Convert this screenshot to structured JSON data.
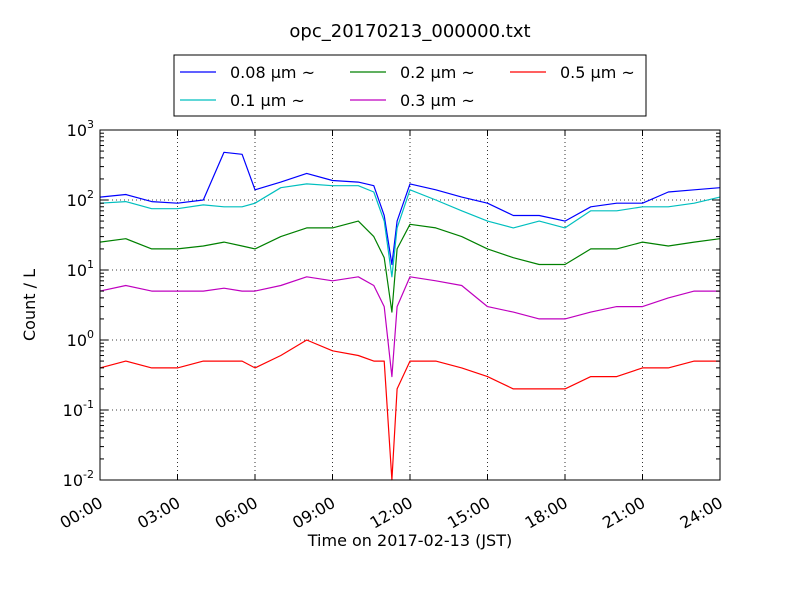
{
  "chart_data": {
    "type": "line",
    "title": "opc_20170213_000000.txt",
    "xlabel": "Time on 2017-02-13 (JST)",
    "ylabel": "Count / L",
    "y_scale": "log",
    "ylim": [
      0.01,
      1000
    ],
    "xlim_hours": [
      0,
      24
    ],
    "grid": "dotted",
    "legend_position": "top",
    "x_ticks": [
      {
        "hour": 0,
        "label": "00:00"
      },
      {
        "hour": 3,
        "label": "03:00"
      },
      {
        "hour": 6,
        "label": "06:00"
      },
      {
        "hour": 9,
        "label": "09:00"
      },
      {
        "hour": 12,
        "label": "12:00"
      },
      {
        "hour": 15,
        "label": "15:00"
      },
      {
        "hour": 18,
        "label": "18:00"
      },
      {
        "hour": 21,
        "label": "21:00"
      },
      {
        "hour": 24,
        "label": "24:00"
      }
    ],
    "y_ticks": [
      {
        "value": 0.01,
        "base": "10",
        "exp": "-2"
      },
      {
        "value": 0.1,
        "base": "10",
        "exp": "-1"
      },
      {
        "value": 1,
        "base": "10",
        "exp": "0"
      },
      {
        "value": 10,
        "base": "10",
        "exp": "1"
      },
      {
        "value": 100,
        "base": "10",
        "exp": "2"
      },
      {
        "value": 1000,
        "base": "10",
        "exp": "3"
      }
    ],
    "x": [
      0,
      1,
      2,
      3,
      4,
      4.8,
      5.5,
      6,
      7,
      8,
      9,
      10,
      10.6,
      11,
      11.3,
      11.5,
      12,
      13,
      14,
      15,
      16,
      17,
      18,
      19,
      20,
      21,
      22,
      23,
      24
    ],
    "series": [
      {
        "name": "0.08 μm ~",
        "color": "#0000ff",
        "values": [
          110,
          120,
          95,
          90,
          100,
          480,
          450,
          140,
          180,
          240,
          190,
          180,
          160,
          60,
          12,
          50,
          170,
          140,
          110,
          90,
          60,
          60,
          50,
          80,
          90,
          90,
          130,
          140,
          150
        ]
      },
      {
        "name": "0.1 μm ~",
        "color": "#00bfbf",
        "values": [
          90,
          95,
          75,
          75,
          85,
          80,
          80,
          90,
          150,
          170,
          160,
          160,
          130,
          50,
          8,
          40,
          140,
          100,
          70,
          50,
          40,
          50,
          40,
          70,
          70,
          80,
          80,
          90,
          110
        ]
      },
      {
        "name": "0.2 μm ~",
        "color": "#008000",
        "values": [
          25,
          28,
          20,
          20,
          22,
          25,
          22,
          20,
          30,
          40,
          40,
          50,
          30,
          15,
          2.5,
          20,
          45,
          40,
          30,
          20,
          15,
          12,
          12,
          20,
          20,
          25,
          22,
          25,
          28
        ]
      },
      {
        "name": "0.3 μm ~",
        "color": "#bf00bf",
        "values": [
          5,
          6,
          5,
          5,
          5,
          5.5,
          5,
          5,
          6,
          8,
          7,
          8,
          6,
          3,
          0.3,
          3,
          8,
          7,
          6,
          3,
          2.5,
          2,
          2,
          2.5,
          3,
          3,
          4,
          5,
          5
        ]
      },
      {
        "name": "0.5 μm ~",
        "color": "#ff0000",
        "values": [
          0.4,
          0.5,
          0.4,
          0.4,
          0.5,
          0.5,
          0.5,
          0.4,
          0.6,
          1,
          0.7,
          0.6,
          0.5,
          0.5,
          0.01,
          0.2,
          0.5,
          0.5,
          0.4,
          0.3,
          0.2,
          0.2,
          0.2,
          0.3,
          0.3,
          0.4,
          0.4,
          0.5,
          0.5
        ]
      }
    ]
  }
}
